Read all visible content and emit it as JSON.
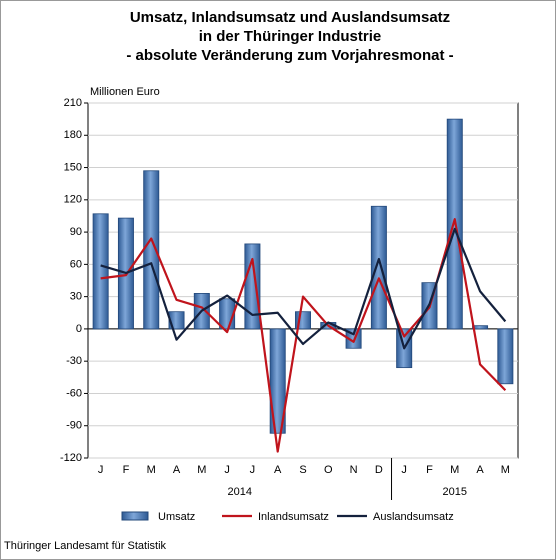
{
  "chart_data": {
    "type": "bar-line",
    "title": [
      "Umsatz, Inlandsumsatz und Auslandsumsatz",
      "in der Thüringer Industrie",
      "- absolute Veränderung zum Vorjahresmonat -"
    ],
    "y_label": "Millionen Euro",
    "categories": [
      "J",
      "F",
      "M",
      "A",
      "M",
      "J",
      "J",
      "A",
      "S",
      "O",
      "N",
      "D",
      "J",
      "F",
      "M",
      "A",
      "M"
    ],
    "groups": [
      {
        "label": "2014",
        "count": 12
      },
      {
        "label": "2015",
        "count": 5
      }
    ],
    "series": [
      {
        "name": "Umsatz",
        "type": "bar",
        "color": "#4f7fbd",
        "values": [
          107,
          103,
          147,
          16,
          33,
          28,
          79,
          -97,
          16,
          6,
          -18,
          114,
          -36,
          43,
          195,
          3,
          -51
        ]
      },
      {
        "name": "Inlandsumsatz",
        "type": "line",
        "color": "#c0141c",
        "values": [
          47,
          50,
          84,
          27,
          20,
          -3,
          65,
          -114,
          30,
          3,
          -12,
          47,
          -7,
          20,
          102,
          -33,
          -57
        ]
      },
      {
        "name": "Auslandsumsatz",
        "type": "line",
        "color": "#14213d",
        "values": [
          59,
          52,
          61,
          -10,
          17,
          31,
          13,
          15,
          -14,
          6,
          -5,
          65,
          -18,
          23,
          93,
          35,
          7
        ]
      }
    ],
    "ylim": [
      -120,
      210
    ],
    "yticks": [
      -120,
      -90,
      -60,
      -30,
      0,
      30,
      60,
      90,
      120,
      150,
      180,
      210
    ],
    "grid": true,
    "footer": "Thüringer Landesamt für Statistik"
  }
}
